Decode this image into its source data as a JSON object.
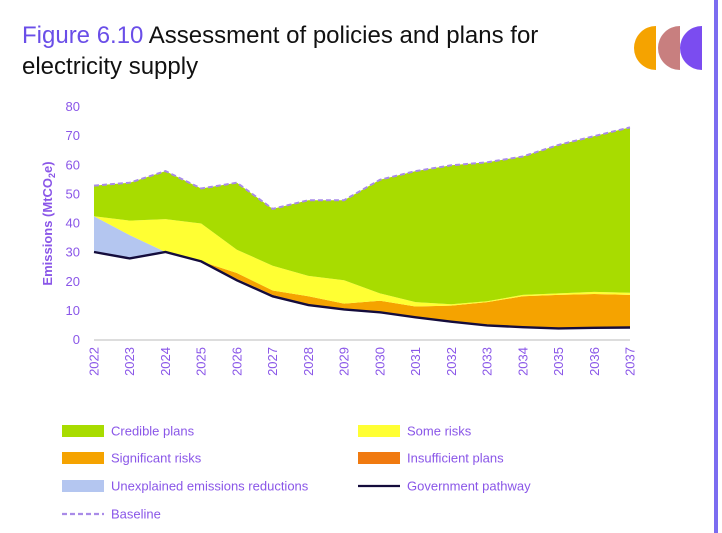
{
  "header": {
    "figure_label": "Figure 6.10",
    "title_text": "Assessment of policies and plans for electricity supply"
  },
  "logo": {
    "name": "logo-icon",
    "colors": [
      "#f5a300",
      "#c87f7f",
      "#7b4cf0"
    ]
  },
  "chart_data": {
    "type": "area",
    "x": [
      2022,
      2023,
      2024,
      2025,
      2026,
      2027,
      2028,
      2029,
      2030,
      2031,
      2032,
      2033,
      2034,
      2035,
      2036,
      2037
    ],
    "ylabel": "Emissions (MtCO2e)",
    "ylabel_parts": [
      "Emissions (MtCO",
      "2",
      "e)"
    ],
    "ylim": [
      0,
      80
    ],
    "yticks": [
      0,
      10,
      20,
      30,
      40,
      50,
      60,
      70,
      80
    ],
    "grid": false,
    "legend_position": "bottom",
    "series": [
      {
        "name": "Government pathway",
        "kind": "line",
        "color": "#140c3c",
        "values": [
          30.2,
          28,
          30.2,
          27,
          20.5,
          15,
          12,
          10.5,
          9.5,
          7.8,
          6.3,
          5,
          4.4,
          4,
          4.2,
          4.3
        ]
      },
      {
        "name": "Insufficient plans",
        "kind": "band",
        "color": "#f07a10",
        "lower": [
          30.2,
          28,
          30.2,
          27,
          20.5,
          15,
          12,
          10.5,
          9.5,
          7.8,
          6.3,
          5,
          4.4,
          4,
          4.2,
          4.3
        ],
        "upper": [
          30.2,
          28,
          30.2,
          27,
          21,
          15.5,
          12.3,
          10.8,
          9.8,
          8,
          6.5,
          5.1,
          4.5,
          4.1,
          4.3,
          4.4
        ]
      },
      {
        "name": "Significant risks",
        "kind": "band",
        "color": "#f5a300",
        "lower": [
          30.2,
          28,
          30.2,
          27,
          21,
          15.5,
          12.3,
          10.8,
          9.8,
          8,
          6.5,
          5.1,
          4.5,
          4.1,
          4.3,
          4.4
        ],
        "upper": [
          30.2,
          28,
          30.2,
          27,
          23,
          17,
          15,
          12.5,
          13.5,
          11.5,
          11.8,
          13,
          15,
          15.5,
          15.8,
          15.5
        ]
      },
      {
        "name": "Unexplained emissions reductions",
        "kind": "band",
        "color": "#b4c6f0",
        "lower": [
          30.2,
          28,
          30.2,
          27,
          23,
          17,
          15,
          12.5,
          13.5,
          11.5,
          11.8,
          13,
          15,
          15.5,
          15.8,
          15.5
        ],
        "upper": [
          42.5,
          36,
          30.2,
          27,
          23,
          17,
          15,
          12.5,
          13.5,
          11.5,
          11.8,
          13,
          15,
          15.5,
          15.8,
          15.5
        ]
      },
      {
        "name": "Some risks",
        "kind": "band",
        "color": "#ffff33",
        "lower": [
          42.5,
          36,
          30.2,
          27,
          23,
          17,
          15,
          12.5,
          13.5,
          11.5,
          11.8,
          13,
          15,
          15.5,
          15.8,
          15.5
        ],
        "upper": [
          42.5,
          41,
          41.5,
          40,
          31,
          25.5,
          22,
          20.5,
          16,
          13,
          12.3,
          13.3,
          15.5,
          16,
          16.5,
          16.2
        ]
      },
      {
        "name": "Credible plans",
        "kind": "band",
        "color": "#a8dc00",
        "lower": [
          42.5,
          41,
          41.5,
          40,
          31,
          25.5,
          22,
          20.5,
          16,
          13,
          12.3,
          13.3,
          15.5,
          16,
          16.5,
          16.2
        ],
        "upper": [
          53,
          54,
          58,
          52,
          54,
          45,
          48,
          48,
          55,
          58,
          60,
          61,
          63,
          67,
          70,
          73
        ]
      },
      {
        "name": "Baseline",
        "kind": "dashed",
        "color": "#a98be8",
        "values": [
          53,
          54,
          58,
          52,
          54,
          45,
          48,
          48,
          55,
          58,
          60,
          61,
          63,
          67,
          70,
          73
        ]
      }
    ],
    "legend": [
      {
        "label": "Credible plans",
        "color": "#a8dc00",
        "kind": "swatch"
      },
      {
        "label": "Some risks",
        "color": "#ffff33",
        "kind": "swatch"
      },
      {
        "label": "Significant risks",
        "color": "#f5a300",
        "kind": "swatch"
      },
      {
        "label": "Insufficient plans",
        "color": "#f07a10",
        "kind": "swatch"
      },
      {
        "label": "Unexplained emissions reductions",
        "color": "#b4c6f0",
        "kind": "swatch"
      },
      {
        "label": "Government pathway",
        "color": "#140c3c",
        "kind": "line"
      },
      {
        "label": "Baseline",
        "color": "#a98be8",
        "kind": "dashed"
      }
    ]
  }
}
